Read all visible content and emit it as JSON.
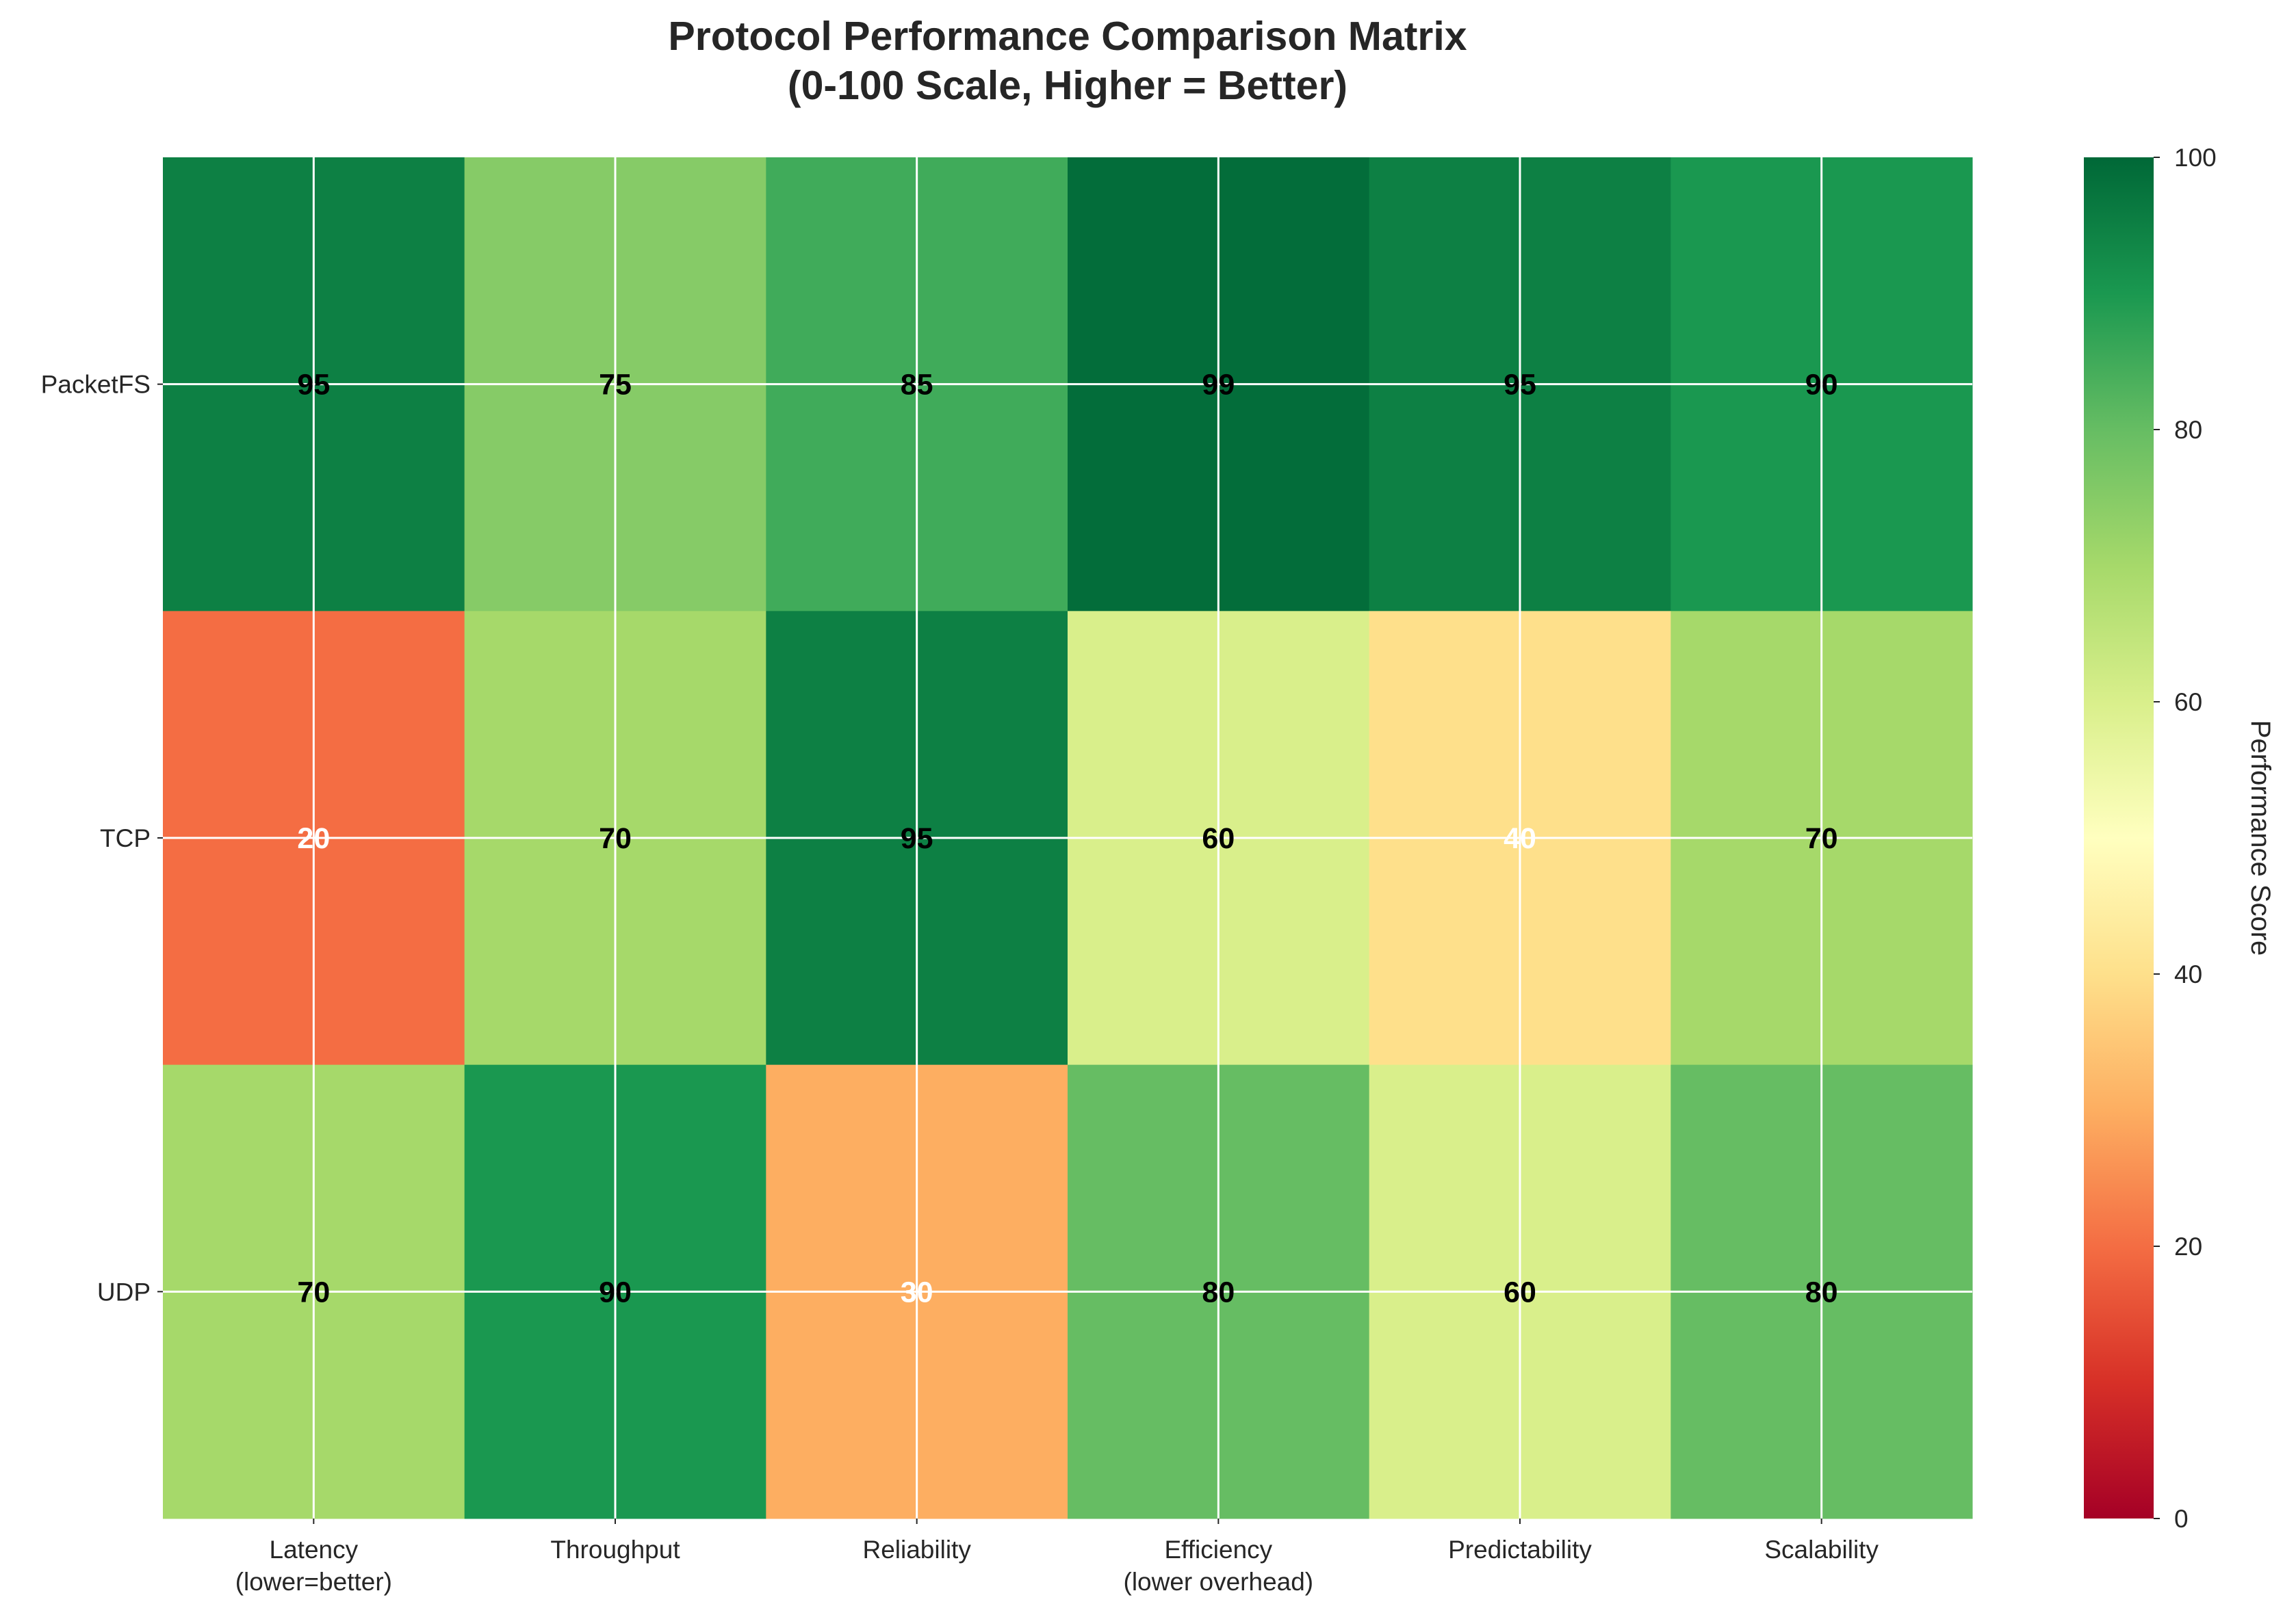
{
  "chart_data": {
    "type": "heatmap",
    "title_lines": [
      "Protocol Performance Comparison Matrix",
      "(0-100 Scale, Higher = Better)"
    ],
    "rows": [
      "PacketFS",
      "TCP",
      "UDP"
    ],
    "columns": [
      [
        "Latency",
        "(lower=better)"
      ],
      [
        "Throughput"
      ],
      [
        "Reliability"
      ],
      [
        "Efficiency",
        "(lower overhead)"
      ],
      [
        "Predictability"
      ],
      [
        "Scalability"
      ]
    ],
    "values": [
      [
        95,
        75,
        85,
        99,
        95,
        90
      ],
      [
        20,
        70,
        95,
        60,
        40,
        70
      ],
      [
        70,
        90,
        30,
        80,
        60,
        80
      ]
    ],
    "colorbar": {
      "label": "Performance Score",
      "range": [
        0,
        100
      ],
      "ticks": [
        "0",
        "20",
        "40",
        "60",
        "80",
        "100"
      ],
      "colormap": "RdYlGn"
    },
    "grid": true
  }
}
